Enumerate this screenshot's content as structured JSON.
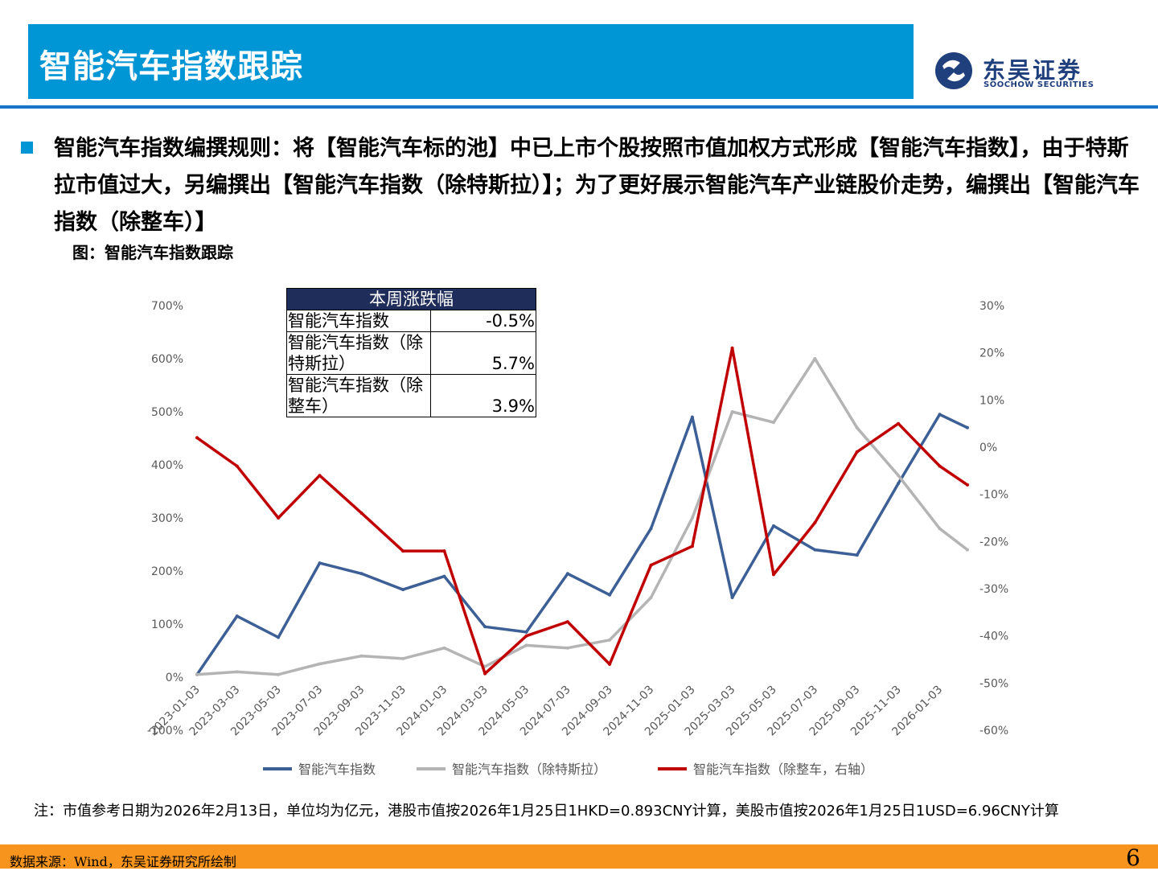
{
  "header": {
    "title": "智能汽车指数跟踪"
  },
  "logo": {
    "cn": "东吴证券",
    "en": "SOOCHOW SECURITIES",
    "icon": "soochow-logo-icon"
  },
  "bullet": {
    "text": "智能汽车指数编撰规则：将【智能汽车标的池】中已上市个股按照市值加权方式形成【智能汽车指数】，由于特斯拉市值过大，另编撰出【智能汽车指数（除特斯拉）】；为了更好展示智能汽车产业链股价走势，编撰出【智能汽车指数（除整车）】"
  },
  "figure": {
    "caption": "图：智能汽车指数跟踪"
  },
  "table": {
    "header": "本周涨跌幅",
    "rows": [
      {
        "label": "智能汽车指数",
        "value": "-0.5%"
      },
      {
        "label": "智能汽车指数（除特斯拉）",
        "value": "5.7%"
      },
      {
        "label": "智能汽车指数（除整车）",
        "value": "3.9%"
      }
    ]
  },
  "chart_data": {
    "type": "line",
    "title": "",
    "x": [
      "2023-01-03",
      "2023-03-03",
      "2023-05-03",
      "2023-07-03",
      "2023-09-03",
      "2023-11-03",
      "2024-01-03",
      "2024-03-03",
      "2024-05-03",
      "2024-07-03",
      "2024-09-03",
      "2024-11-03",
      "2025-01-03",
      "2025-03-03",
      "2025-05-03",
      "2025-07-03",
      "2025-09-03",
      "2025-11-03",
      "2026-01-03",
      "2026-02-13"
    ],
    "x_tick_labels": [
      "2023-01-03",
      "2023-03-03",
      "2023-05-03",
      "2023-07-03",
      "2023-09-03",
      "2023-11-03",
      "2024-01-03",
      "2024-03-03",
      "2024-05-03",
      "2024-07-03",
      "2024-09-03",
      "2024-11-03",
      "2025-01-03",
      "2025-03-03",
      "2025-05-03",
      "2025-07-03",
      "2025-09-03",
      "2025-11-03",
      "2026-01-03"
    ],
    "left_axis": {
      "ylim": [
        -100,
        700
      ],
      "ticks": [
        "-100%",
        "0%",
        "100%",
        "200%",
        "300%",
        "400%",
        "500%",
        "600%",
        "700%"
      ]
    },
    "right_axis": {
      "ylim": [
        -60,
        30
      ],
      "ticks": [
        "-60%",
        "-50%",
        "-40%",
        "-30%",
        "-20%",
        "-10%",
        "0%",
        "10%",
        "20%",
        "30%"
      ]
    },
    "legend_position": "bottom",
    "grid": false,
    "series": [
      {
        "name": "智能汽车指数",
        "axis": "left",
        "color": "#3c5f96",
        "values": [
          5,
          115,
          75,
          215,
          195,
          165,
          190,
          95,
          85,
          195,
          155,
          280,
          490,
          150,
          285,
          240,
          230,
          365,
          495,
          470
        ]
      },
      {
        "name": "智能汽车指数（除特斯拉）",
        "axis": "left",
        "color": "#b4b4b4",
        "values": [
          5,
          10,
          5,
          25,
          40,
          35,
          55,
          20,
          60,
          55,
          70,
          150,
          300,
          500,
          480,
          600,
          470,
          380,
          280,
          240
        ]
      },
      {
        "name": "智能汽车指数（除整车，右轴）",
        "axis": "right",
        "color": "#c00000",
        "values": [
          2,
          -4,
          -15,
          -6,
          -14,
          -22,
          -22,
          -48,
          -40,
          -37,
          -46,
          -25,
          -21,
          21,
          -27,
          -16,
          -1,
          5,
          -4,
          -8
        ]
      }
    ]
  },
  "note": "注：市值参考日期为2026年2月13日，单位均为亿元，港股市值按2026年1月25日1HKD=0.893CNY计算，美股市值按2026年1月25日1USD=6.96CNY计算",
  "footer": {
    "source": "数据来源：Wind，东吴证券研究所绘制",
    "page": "6"
  }
}
